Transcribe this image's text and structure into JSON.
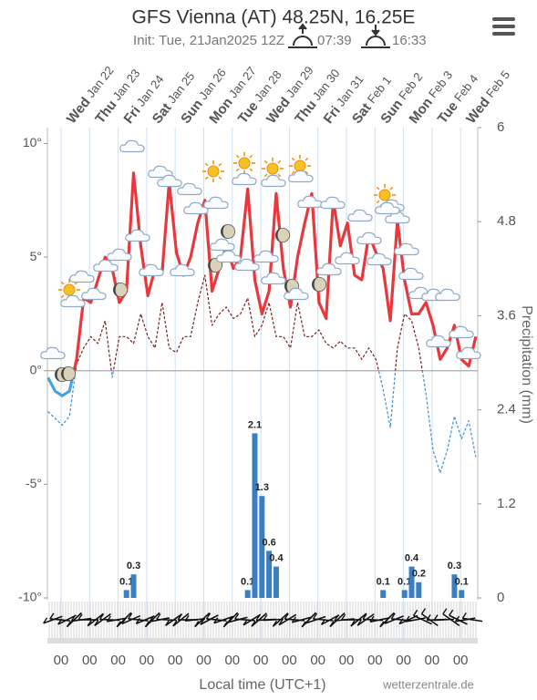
{
  "chart_data": {
    "type": "meteogram",
    "title": "GFS Vienna (AT) 48.25N, 16.25E",
    "subtitle": "Init: Tue, 21Jan2025 12Z",
    "sunrise": "07:39",
    "sunset": "16:33",
    "days": [
      {
        "weekday": "Wed",
        "date": "Jan 22"
      },
      {
        "weekday": "Thu",
        "date": "Jan 23"
      },
      {
        "weekday": "Fri",
        "date": "Jan 24"
      },
      {
        "weekday": "Sat",
        "date": "Jan 25"
      },
      {
        "weekday": "Sun",
        "date": "Jan 26"
      },
      {
        "weekday": "Mon",
        "date": "Jan 27"
      },
      {
        "weekday": "Tue",
        "date": "Jan 28"
      },
      {
        "weekday": "Wed",
        "date": "Jan 29"
      },
      {
        "weekday": "Thu",
        "date": "Jan 30"
      },
      {
        "weekday": "Fri",
        "date": "Jan 31"
      },
      {
        "weekday": "Sat",
        "date": "Feb 1"
      },
      {
        "weekday": "Sun",
        "date": "Feb 2"
      },
      {
        "weekday": "Mon",
        "date": "Feb 3"
      },
      {
        "weekday": "Tue",
        "date": "Feb 4"
      },
      {
        "weekday": "Wed",
        "date": "Feb 5"
      }
    ],
    "x_tick_labels": [
      "00",
      "00",
      "00",
      "00",
      "00",
      "00",
      "00",
      "00",
      "00",
      "00",
      "00",
      "00",
      "00",
      "00",
      "00"
    ],
    "x_label": "Local time (UTC+1)",
    "source": "wetterzentrale.de",
    "ylim": [
      -10,
      10.7
    ],
    "yticks": [
      {
        "value": 10,
        "label": "10°"
      },
      {
        "value": 5,
        "label": "5°"
      },
      {
        "value": 0,
        "label": "0°"
      },
      {
        "value": -5,
        "label": "-5°"
      },
      {
        "value": -10,
        "label": "-10°"
      }
    ],
    "y2lim": [
      0,
      6
    ],
    "y2ticks": [
      6,
      4.8,
      3.6,
      2.4,
      1.2,
      0
    ],
    "y2_label": "Precipitation (mm)",
    "series": [
      {
        "kind": "line",
        "color": "#e8383d",
        "below_zero_color": "#4aa3df",
        "values": [
          -0.3,
          -0.9,
          -1.1,
          -0.9,
          0.5,
          3.2,
          3.0,
          4.0,
          5.0,
          4.5,
          3.0,
          3.5,
          8.7,
          5.5,
          3.3,
          4.5,
          4.3,
          8.3,
          5.2,
          4.2,
          5.0,
          6.5,
          7.5,
          3.5,
          4.5,
          5.5,
          4.5,
          5.0,
          8.0,
          4.0,
          2.5,
          3.5,
          7.8,
          4.5,
          2.8,
          5.0,
          6.5,
          7.8,
          3.0,
          2.3,
          7.5,
          5.5,
          6.5,
          4.2,
          4.0,
          6.0,
          5.2,
          4.5,
          2.2,
          6.6,
          4.0,
          2.5,
          2.5,
          3.0,
          2.0,
          0.5,
          1.0,
          2.0,
          0.5,
          0.2,
          1.5
        ]
      },
      {
        "kind": "dashed",
        "color": "#7a1f1f",
        "below_zero_color": "#3a8fd8",
        "values": [
          -1.8,
          -2.1,
          -2.4,
          -2.0,
          0.3,
          1.0,
          1.5,
          1.2,
          2.2,
          -0.3,
          1.5,
          1.5,
          1.2,
          2.5,
          1.5,
          1.0,
          3.0,
          1.0,
          0.8,
          1.5,
          1.5,
          3.0,
          4.2,
          2.0,
          2.5,
          2.8,
          2.3,
          2.5,
          3.2,
          1.5,
          2.0,
          3.0,
          1.5,
          1.5,
          1.0,
          3.0,
          1.5,
          1.5,
          1.8,
          1.2,
          1.0,
          1.3,
          1.0,
          1.0,
          0.5,
          1.0,
          0.5,
          -0.8,
          -2.5,
          1.0,
          2.5,
          2.2,
          1.0,
          -1.0,
          -3.5,
          -4.5,
          -3.5,
          -2.0,
          -3.0,
          -2.2,
          -3.8
        ]
      },
      {
        "kind": "bars",
        "axis": "y2",
        "color": "#3a7fc1",
        "values": [
          0,
          0,
          0,
          0,
          0,
          0,
          0,
          0,
          0,
          0,
          0,
          0.1,
          0.3,
          0,
          0,
          0,
          0,
          0,
          0,
          0,
          0,
          0,
          0,
          0,
          0,
          0,
          0,
          0,
          0.1,
          2.1,
          1.3,
          0.6,
          0.4,
          0,
          0,
          0,
          0,
          0,
          0,
          0,
          0,
          0,
          0,
          0,
          0,
          0,
          0,
          0.1,
          0,
          0,
          0.1,
          0.4,
          0.2,
          0,
          0,
          0,
          0,
          0.3,
          0.1,
          0,
          0
        ]
      }
    ]
  }
}
